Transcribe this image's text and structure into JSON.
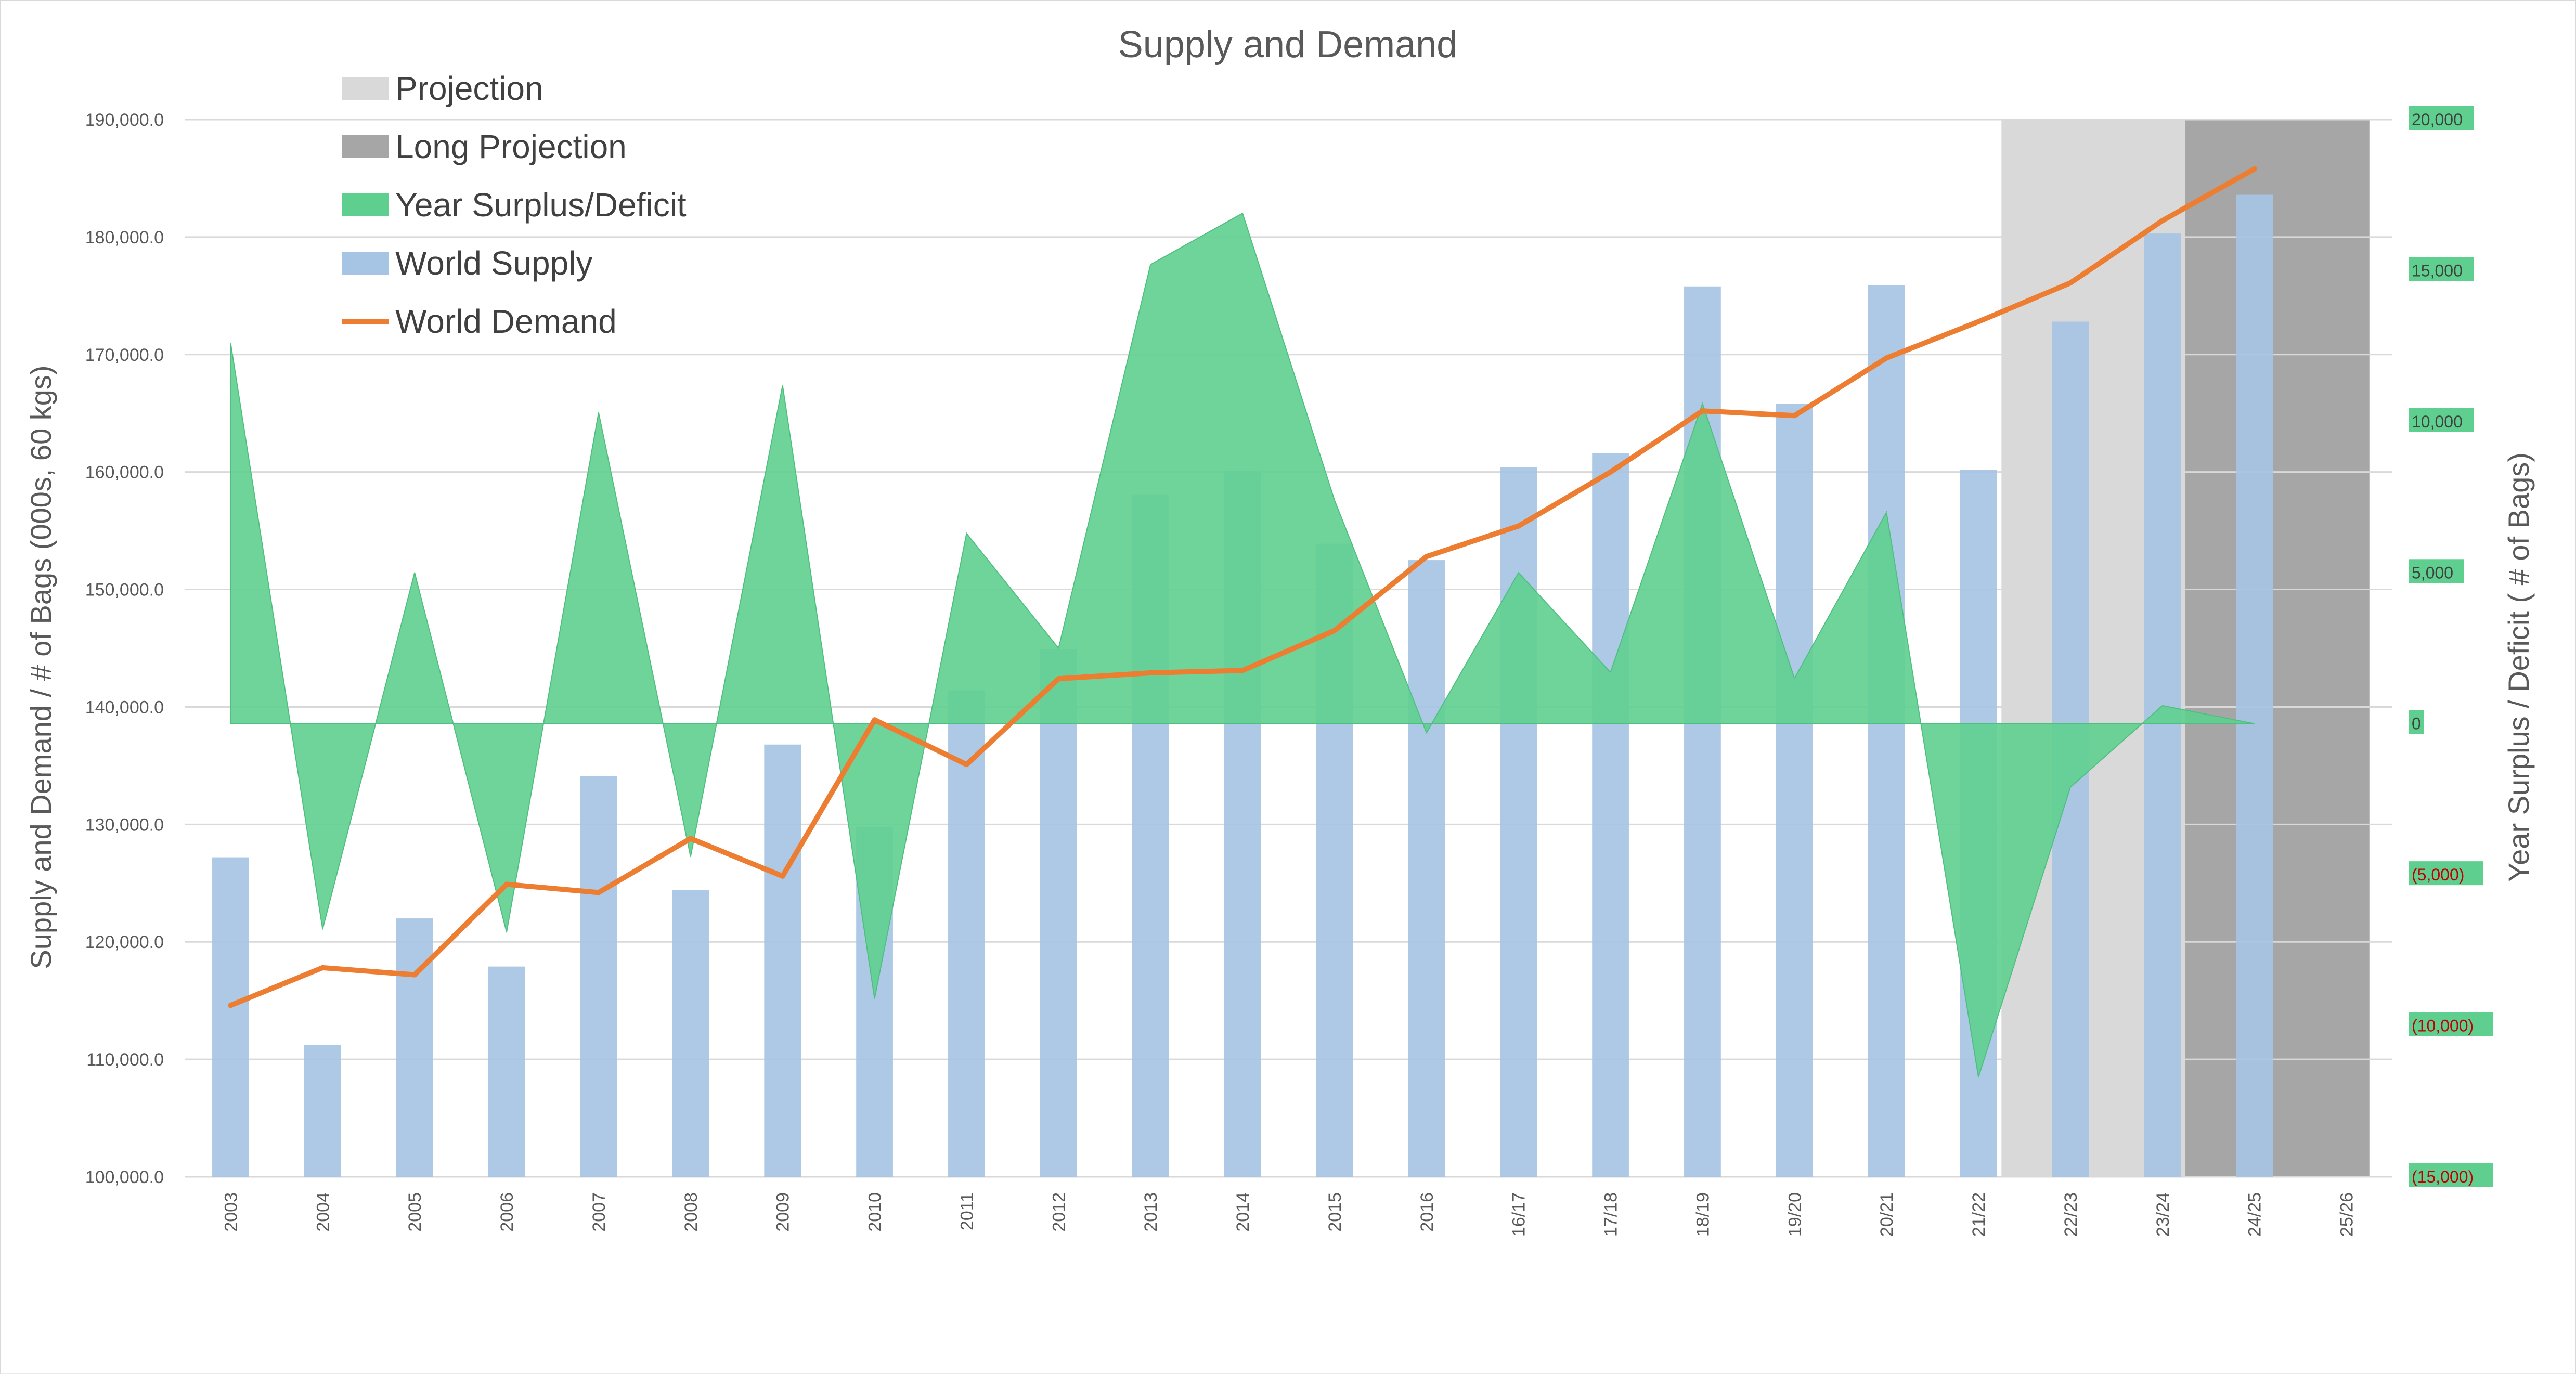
{
  "chart_data": {
    "type": "bar",
    "title": "Supply and Demand",
    "y_left_label": "Supply and Demand / # of Bags (000s, 60 kgs)",
    "y_right_label": "Year Surplus / Deficit ( # of Bags)",
    "ylim_left": [
      100000,
      190000
    ],
    "ylim_right": [
      -15000,
      20000
    ],
    "left_ticks": [
      "100,000.0",
      "110,000.0",
      "120,000.0",
      "130,000.0",
      "140,000.0",
      "150,000.0",
      "160,000.0",
      "170,000.0",
      "180,000.0",
      "190,000.0"
    ],
    "right_ticks": [
      {
        "value": 20000,
        "label": "20,000"
      },
      {
        "value": 15000,
        "label": "15,000"
      },
      {
        "value": 10000,
        "label": "10,000"
      },
      {
        "value": 5000,
        "label": "5,000"
      },
      {
        "value": 0,
        "label": "0"
      },
      {
        "value": -5000,
        "label": "(5,000)"
      },
      {
        "value": -10000,
        "label": "(10,000)"
      },
      {
        "value": -15000,
        "label": "(15,000)"
      }
    ],
    "categories": [
      "2003",
      "2004",
      "2005",
      "2006",
      "2007",
      "2008",
      "2009",
      "2010",
      "2011",
      "2012",
      "2013",
      "2014",
      "2015",
      "2016",
      "16/17",
      "17/18",
      "18/19",
      "19/20",
      "20/21",
      "21/22",
      "22/23",
      "23/24",
      "24/25",
      "25/26"
    ],
    "grid": true,
    "legend_position": "top-left",
    "legend": [
      {
        "label": "Projection",
        "swatch": "rect",
        "color": "#d9d9d9"
      },
      {
        "label": "Long Projection",
        "swatch": "rect",
        "color": "#a6a6a6"
      },
      {
        "label": "Year Surplus/Deficit",
        "swatch": "rect",
        "color": "#5fcf8f"
      },
      {
        "label": "World Supply",
        "swatch": "rect",
        "color": "#a6c4e4"
      },
      {
        "label": "World Demand",
        "swatch": "line",
        "color": "#ed7d31"
      }
    ],
    "projection_ranges": [
      {
        "name": "Projection",
        "from_category": "21/22",
        "to_category": "23/24",
        "color": "#d9d9d9"
      },
      {
        "name": "Long Projection",
        "from_category": "23/24",
        "to_category": "25/26",
        "color": "#a6a6a6"
      }
    ],
    "series": [
      {
        "name": "World Supply",
        "type": "bar",
        "axis": "left",
        "color": "#a6c4e4",
        "values": [
          127200,
          111200,
          122000,
          117900,
          134100,
          124400,
          136800,
          129800,
          141400,
          144900,
          158100,
          160100,
          153900,
          152500,
          160400,
          161600,
          175800,
          165800,
          175900,
          160200,
          172800,
          180300,
          183600,
          null
        ]
      },
      {
        "name": "World Demand",
        "type": "line",
        "axis": "left",
        "color": "#ed7d31",
        "values": [
          114600,
          117800,
          117200,
          124900,
          124200,
          128800,
          125600,
          138900,
          135100,
          142400,
          142900,
          143100,
          146500,
          152800,
          155400,
          160000,
          165200,
          164800,
          169700,
          172800,
          176100,
          181400,
          185800,
          null
        ]
      },
      {
        "name": "Year Surplus/Deficit",
        "type": "area",
        "axis": "right",
        "color": "#5fcf8f",
        "values": [
          12600,
          -6800,
          5000,
          -6900,
          10300,
          -4400,
          11200,
          -9100,
          6300,
          2500,
          15200,
          16900,
          7400,
          -300,
          5000,
          1700,
          10600,
          1500,
          7000,
          -11700,
          -2100,
          600,
          0,
          null
        ]
      }
    ]
  }
}
